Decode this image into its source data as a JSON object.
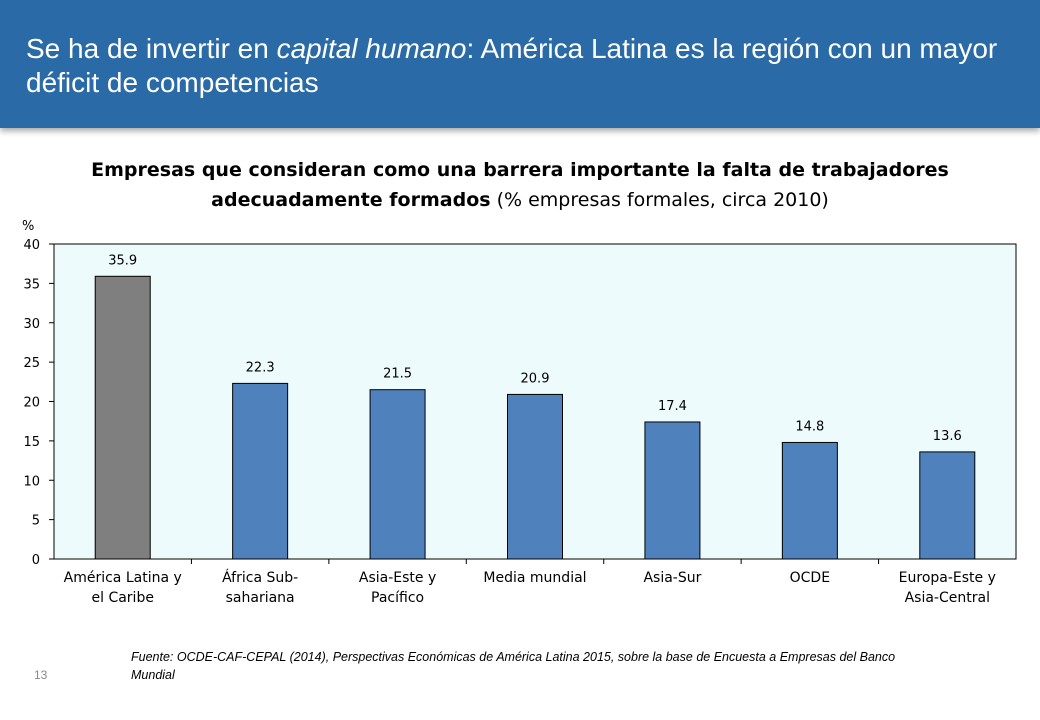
{
  "header": {
    "title_part1": "Se ha de invertir en ",
    "title_italic": "capital humano",
    "title_part2": ": América Latina es la región con un mayor déficit de competencias"
  },
  "chart_data": {
    "type": "bar",
    "title_bold": "Empresas que consideran como una barrera importante la falta de trabajadores adecuadamente formados",
    "title_normal": " (% empresas formales, circa 2010)",
    "ylabel": "%",
    "ylim": [
      0,
      40
    ],
    "yticks": [
      "0",
      "5",
      "10",
      "15",
      "20",
      "25",
      "30",
      "35",
      "40"
    ],
    "categories": [
      [
        "América Latina y",
        "el Caribe"
      ],
      [
        "África Sub-",
        "sahariana"
      ],
      [
        "Asia-Este y",
        "Pacífico"
      ],
      [
        "Media mundial"
      ],
      [
        "Asia-Sur"
      ],
      [
        "OCDE"
      ],
      [
        "Europa-Este y",
        "Asia-Central"
      ]
    ],
    "values": [
      35.9,
      22.3,
      21.5,
      20.9,
      17.4,
      14.8,
      13.6
    ],
    "value_labels": [
      "35.9",
      "22.3",
      "21.5",
      "20.9",
      "17.4",
      "14.8",
      "13.6"
    ],
    "bar_colors": [
      "#7f7f7f",
      "#4f81bd",
      "#4f81bd",
      "#4f81bd",
      "#4f81bd",
      "#4f81bd",
      "#4f81bd"
    ],
    "plot_background": "#eefbfd",
    "grid": false
  },
  "footer": {
    "source": "Fuente: OCDE-CAF-CEPAL (2014), Perspectivas Económicas de América Latina 2015, sobre la base de Encuesta a Empresas del Banco Mundial",
    "slide_number": "13"
  }
}
